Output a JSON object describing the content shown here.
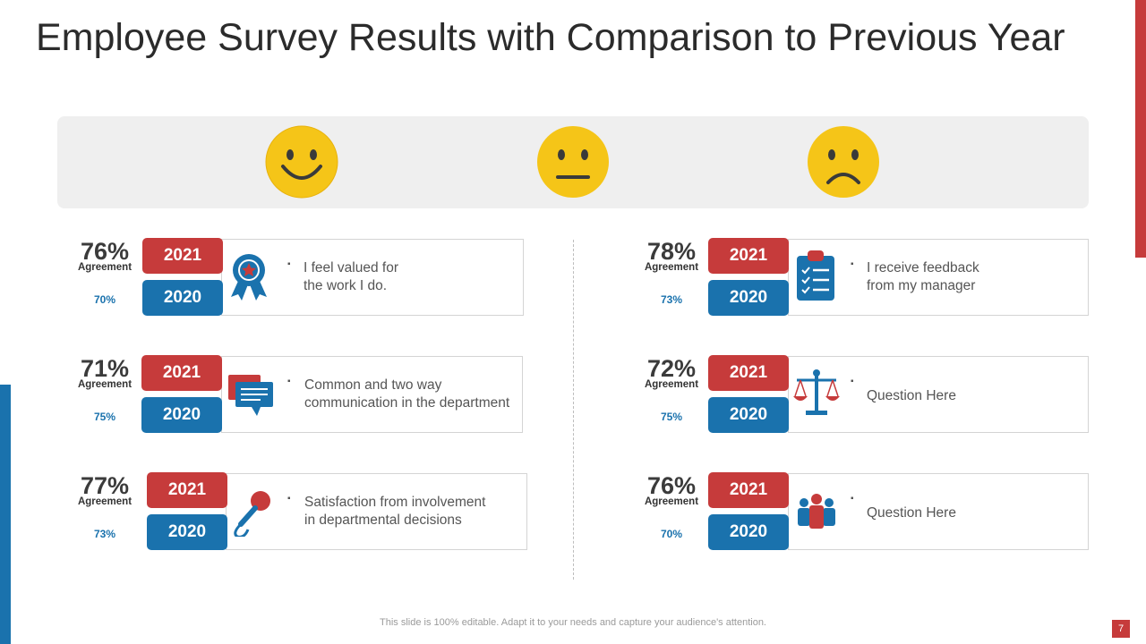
{
  "title": "Employee Survey Results with Comparison to Previous Year",
  "colors": {
    "red": "#c63b3b",
    "blue": "#1a72ad",
    "emoji_yellow": "#f5c518"
  },
  "emojis": [
    "happy-face-icon",
    "neutral-face-icon",
    "sad-face-icon"
  ],
  "metrics": [
    {
      "pct": "76%",
      "label": "Agreement",
      "prev": "70%",
      "y1": "2021",
      "y2": "2020",
      "icon": "award-ribbon-icon",
      "line1": "I feel valued for",
      "line2": "the work I do."
    },
    {
      "pct": "71%",
      "label": "Agreement",
      "prev": "75%",
      "y1": "2021",
      "y2": "2020",
      "icon": "chat-messages-icon",
      "line1": "Common and two way",
      "line2": "communication in the department"
    },
    {
      "pct": "77%",
      "label": "Agreement",
      "prev": "73%",
      "y1": "2021",
      "y2": "2020",
      "icon": "microphone-icon",
      "line1": "Satisfaction from involvement",
      "line2": "in departmental decisions"
    },
    {
      "pct": "78%",
      "label": "Agreement",
      "prev": "73%",
      "y1": "2021",
      "y2": "2020",
      "icon": "clipboard-checklist-icon",
      "line1": "I receive feedback",
      "line2": "from my manager"
    },
    {
      "pct": "72%",
      "label": "Agreement",
      "prev": "75%",
      "y1": "2021",
      "y2": "2020",
      "icon": "balance-scale-icon",
      "line1": "Question Here",
      "line2": ""
    },
    {
      "pct": "76%",
      "label": "Agreement",
      "prev": "70%",
      "y1": "2021",
      "y2": "2020",
      "icon": "team-people-icon",
      "line1": "Question Here",
      "line2": ""
    }
  ],
  "footer": "This slide is 100% editable. Adapt it to your needs and capture your audience's attention.",
  "page_number": "7"
}
